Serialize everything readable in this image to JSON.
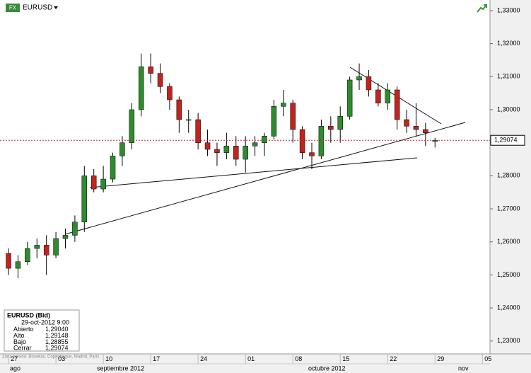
{
  "chart_data": {
    "type": "candlestick",
    "symbol": "EURUSD",
    "symbol_icon": "FX",
    "timezone": "Zona horaria: Bruselas, Copenhague, Madrid, París",
    "open": [
      1.2565,
      1.252,
      1.254,
      1.258,
      1.259,
      1.256,
      1.261,
      1.262,
      1.266,
      1.28,
      1.276,
      1.279,
      1.286,
      1.29,
      1.3,
      1.313,
      1.311,
      1.307,
      1.303,
      1.297,
      1.297,
      1.29,
      1.288,
      1.287,
      1.289,
      1.285,
      1.289,
      1.29,
      1.292,
      1.301,
      1.302,
      1.294,
      1.287,
      1.286,
      1.295,
      1.294,
      1.298,
      1.309,
      1.31,
      1.306,
      1.302,
      1.306,
      1.297,
      1.295,
      1.294,
      1.2904
    ],
    "high": [
      1.258,
      1.256,
      1.26,
      1.261,
      1.262,
      1.263,
      1.264,
      1.268,
      1.283,
      1.282,
      1.283,
      1.287,
      1.292,
      1.302,
      1.317,
      1.317,
      1.314,
      1.308,
      1.304,
      1.3,
      1.299,
      1.294,
      1.29,
      1.293,
      1.292,
      1.292,
      1.292,
      1.293,
      1.303,
      1.306,
      1.303,
      1.295,
      1.29,
      1.297,
      1.298,
      1.301,
      1.31,
      1.314,
      1.312,
      1.308,
      1.308,
      1.307,
      1.3,
      1.302,
      1.296,
      1.29148
    ],
    "low": [
      1.25,
      1.249,
      1.253,
      1.255,
      1.25,
      1.255,
      1.258,
      1.26,
      1.263,
      1.275,
      1.275,
      1.278,
      1.283,
      1.288,
      1.298,
      1.308,
      1.305,
      1.3,
      1.293,
      1.293,
      1.288,
      1.286,
      1.283,
      1.285,
      1.283,
      1.281,
      1.286,
      1.286,
      1.291,
      1.298,
      1.29,
      1.285,
      1.282,
      1.285,
      1.29,
      1.29,
      1.297,
      1.306,
      1.304,
      1.301,
      1.3,
      1.294,
      1.293,
      1.292,
      1.289,
      1.28855
    ],
    "close": [
      1.252,
      1.254,
      1.258,
      1.259,
      1.256,
      1.261,
      1.262,
      1.266,
      1.28,
      1.276,
      1.279,
      1.286,
      1.29,
      1.3,
      1.313,
      1.311,
      1.307,
      1.303,
      1.297,
      1.297,
      1.29,
      1.288,
      1.287,
      1.289,
      1.285,
      1.289,
      1.29,
      1.292,
      1.301,
      1.302,
      1.294,
      1.287,
      1.286,
      1.295,
      1.294,
      1.298,
      1.309,
      1.31,
      1.306,
      1.302,
      1.306,
      1.297,
      1.295,
      1.294,
      1.293,
      1.29074
    ],
    "up_color": "#2e8b2e",
    "down_color": "#c0241c",
    "wick_color": "#000000",
    "xlim": [
      -0.9,
      50.8
    ],
    "xticks": [
      {
        "value": 0,
        "label": "27"
      },
      {
        "value": 5,
        "label": "03"
      },
      {
        "value": 10,
        "label": "10"
      },
      {
        "value": 15,
        "label": "17"
      },
      {
        "value": 20,
        "label": "24"
      },
      {
        "value": 25,
        "label": "01"
      },
      {
        "value": 30,
        "label": "08"
      },
      {
        "value": 35,
        "label": "15"
      },
      {
        "value": 40,
        "label": "22"
      },
      {
        "value": 45,
        "label": "29"
      },
      {
        "value": 50,
        "label": "05"
      }
    ],
    "month_labels": [
      "ago",
      "septiembre 2012",
      "octubre 2012",
      "nov"
    ],
    "ylim": [
      1.2261,
      1.3332
    ],
    "yticks": [
      {
        "value": 1.23,
        "label": "1,23000"
      },
      {
        "value": 1.24,
        "label": "1,24000"
      },
      {
        "value": 1.25,
        "label": "1,25000"
      },
      {
        "value": 1.26,
        "label": "1,26000"
      },
      {
        "value": 1.27,
        "label": "1,27000"
      },
      {
        "value": 1.28,
        "label": "1,28000"
      },
      {
        "value": 1.29,
        "label": "1,29000"
      },
      {
        "value": 1.3,
        "label": "1,30000"
      },
      {
        "value": 1.31,
        "label": "1,31000"
      },
      {
        "value": 1.32,
        "label": "1,32000"
      },
      {
        "value": 1.33,
        "label": "1,33000"
      }
    ],
    "last_price": {
      "value": 1.29074,
      "label": "1,29074"
    },
    "last_price_color": "#d0203a",
    "info_box": {
      "title": "EURUSD (Bid)",
      "datetime": "29-oct-2012 9:00",
      "rows": [
        [
          "Abierto",
          "1,29040"
        ],
        [
          "Alto",
          "1,29148"
        ],
        [
          "Bajo",
          "1,28855"
        ],
        [
          "Cerrar",
          "1,29074"
        ]
      ]
    }
  }
}
